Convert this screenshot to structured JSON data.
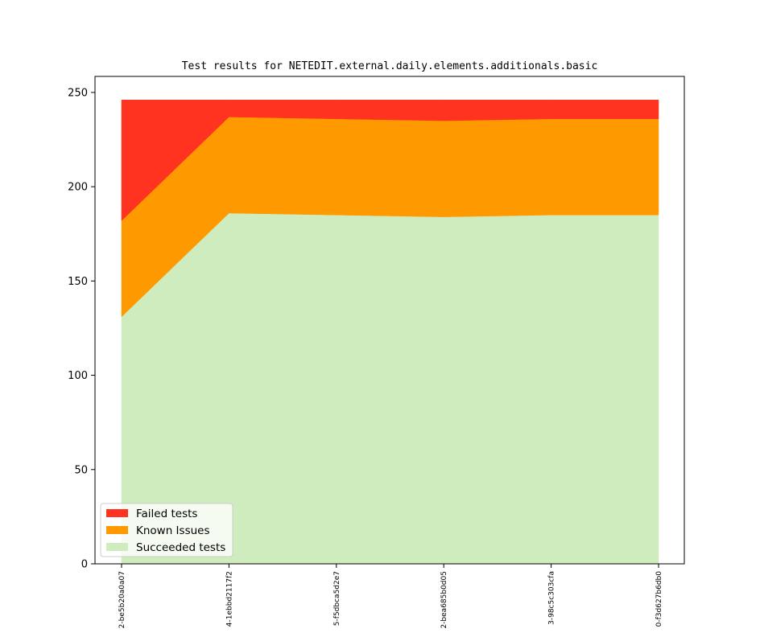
{
  "chart_data": {
    "type": "area",
    "stacked": true,
    "title": "Test results for NETEDIT.external.daily.elements.additionals.basic",
    "xlabel": "",
    "ylabel": "",
    "categories": [
      "2-be5b20a0a07",
      "4-1ebbd2117f2",
      "5-f5dbca5d2e7",
      "2-bea685b0d05",
      "3-98c5c303cfa",
      "0-f3d627b6db0"
    ],
    "ylim": [
      0,
      250
    ],
    "yticks": [
      0,
      50,
      100,
      150,
      200,
      250
    ],
    "series": [
      {
        "name": "Succeeded tests",
        "color": "#cfecbf",
        "values": [
          131,
          186,
          185,
          184,
          185,
          185
        ]
      },
      {
        "name": "Known Issues",
        "color": "#ff9900",
        "values": [
          51,
          51,
          51,
          51,
          51,
          51
        ]
      },
      {
        "name": "Failed tests",
        "color": "#ff331f",
        "values": [
          64,
          9,
          10,
          11,
          10,
          10
        ]
      }
    ],
    "legend": {
      "location": "lower-left",
      "order": [
        "Failed tests",
        "Known Issues",
        "Succeeded tests"
      ]
    },
    "grid": false
  }
}
